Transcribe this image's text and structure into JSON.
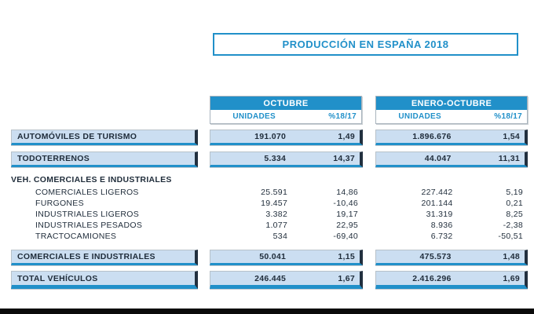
{
  "header": {
    "title": "PRODUCCIÓN EN ESPAÑA 2018"
  },
  "colors": {
    "accent": "#2190C9",
    "row_fill": "#CBDEF1",
    "dark_navy": "#22303F",
    "text": "#1F2C3A",
    "box_border": "#A9B4BD",
    "footer_bar": "#0A0A0A"
  },
  "chart_data": {
    "type": "table",
    "title": "PRODUCCIÓN EN ESPAÑA 2018",
    "column_groups": [
      {
        "label": "OCTUBRE",
        "cols": [
          "UNIDADES",
          "%18/17"
        ]
      },
      {
        "label": "ENERO-OCTUBRE",
        "cols": [
          "UNIDADES",
          "%18/17"
        ]
      }
    ],
    "rows": [
      {
        "style": "highlight",
        "label": "AUTOMÓVILES DE TURISMO",
        "octubre": {
          "unidades": "191.070",
          "pct": "1,49"
        },
        "enero_octubre": {
          "unidades": "1.896.676",
          "pct": "1,54"
        }
      },
      {
        "style": "highlight",
        "label": "TODOTERRENOS",
        "octubre": {
          "unidades": "5.334",
          "pct": "14,37"
        },
        "enero_octubre": {
          "unidades": "44.047",
          "pct": "11,31"
        }
      },
      {
        "style": "section",
        "label": "VEH. COMERCIALES E INDUSTRIALES"
      },
      {
        "style": "detail",
        "label": "COMERCIALES LIGEROS",
        "octubre": {
          "unidades": "25.591",
          "pct": "14,86"
        },
        "enero_octubre": {
          "unidades": "227.442",
          "pct": "5,19"
        }
      },
      {
        "style": "detail",
        "label": "FURGONES",
        "octubre": {
          "unidades": "19.457",
          "pct": "-10,46"
        },
        "enero_octubre": {
          "unidades": "201.144",
          "pct": "0,21"
        }
      },
      {
        "style": "detail",
        "label": "INDUSTRIALES LIGEROS",
        "octubre": {
          "unidades": "3.382",
          "pct": "19,17"
        },
        "enero_octubre": {
          "unidades": "31.319",
          "pct": "8,25"
        }
      },
      {
        "style": "detail",
        "label": "INDUSTRIALES PESADOS",
        "octubre": {
          "unidades": "1.077",
          "pct": "22,95"
        },
        "enero_octubre": {
          "unidades": "8.936",
          "pct": "-2,38"
        }
      },
      {
        "style": "detail",
        "label": "TRACTOCAMIONES",
        "octubre": {
          "unidades": "534",
          "pct": "-69,40"
        },
        "enero_octubre": {
          "unidades": "6.732",
          "pct": "-50,51"
        }
      },
      {
        "style": "highlight",
        "label": "COMERCIALES E INDUSTRIALES",
        "octubre": {
          "unidades": "50.041",
          "pct": "1,15"
        },
        "enero_octubre": {
          "unidades": "475.573",
          "pct": "1,48"
        }
      },
      {
        "style": "total",
        "label": "TOTAL VEHÍCULOS",
        "octubre": {
          "unidades": "246.445",
          "pct": "1,67"
        },
        "enero_octubre": {
          "unidades": "2.416.296",
          "pct": "1,69"
        }
      }
    ]
  }
}
